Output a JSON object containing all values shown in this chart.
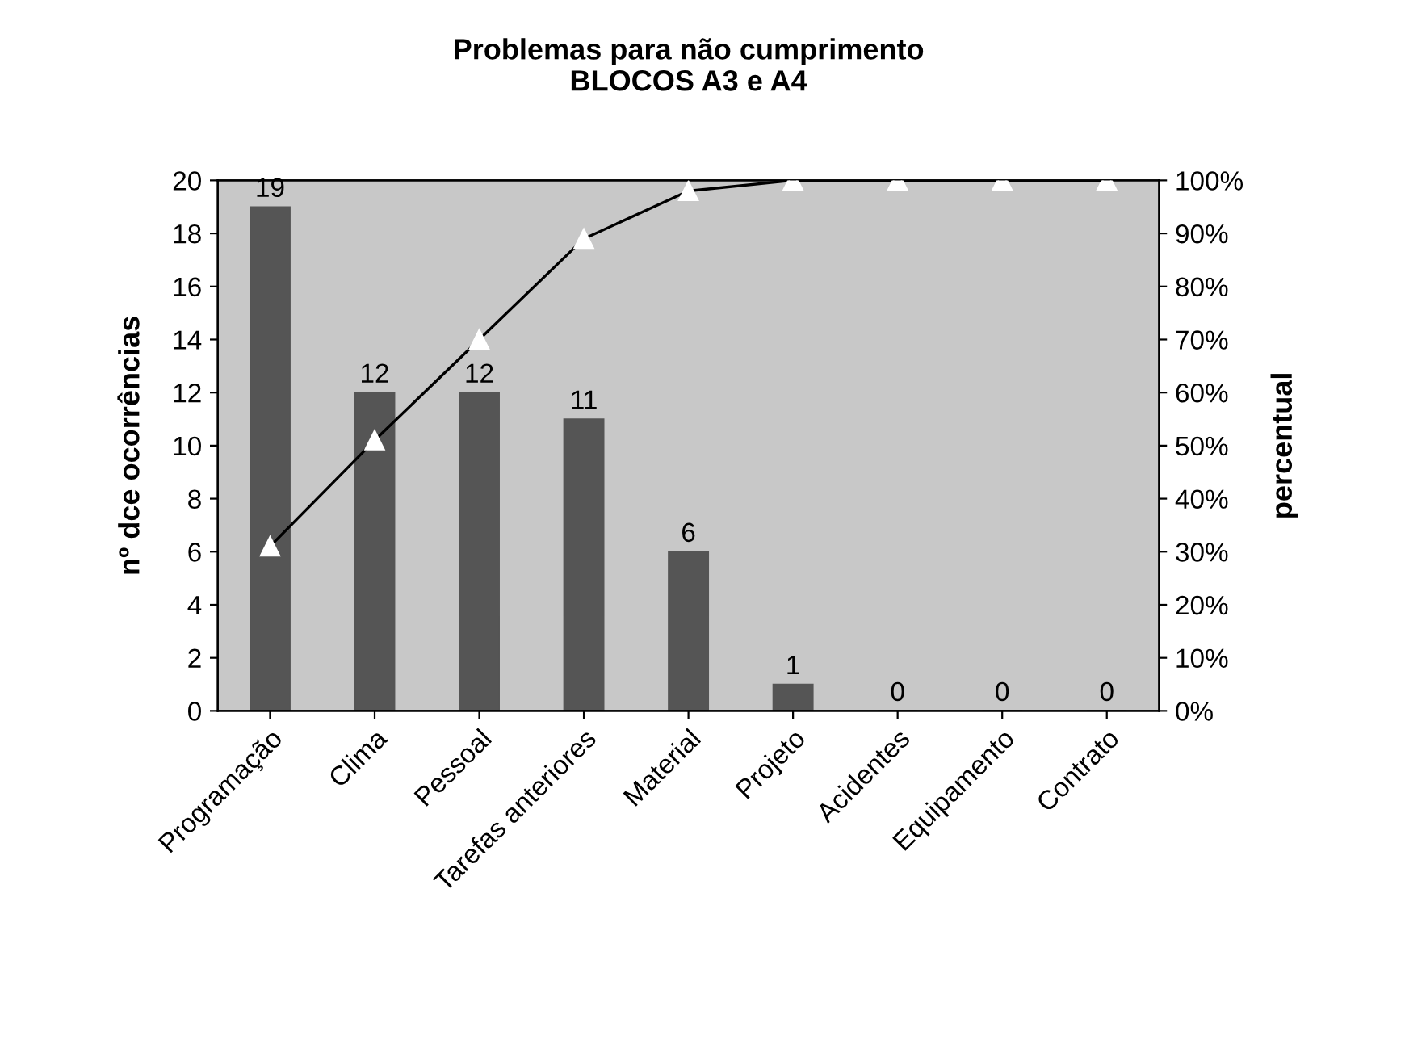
{
  "chart_data": {
    "type": "bar",
    "title": "Problemas para não cumprimento\nBLOCOS A3 e A4",
    "ylabel": "nº dce ocorrências",
    "y2label": "percentual",
    "categories": [
      "Programação",
      "Clima",
      "Pessoal",
      "Tarefas anteriores",
      "Material",
      "Projeto",
      "Acidentes",
      "Equipamento",
      "Contrato"
    ],
    "series": [
      {
        "color": "#555555",
        "values": [
          19,
          12,
          12,
          11,
          6,
          1,
          0,
          0,
          0
        ],
        "data_labels": true
      },
      {
        "type": "line",
        "axis": "y2",
        "color": "#000000",
        "marker": "triangle",
        "line_style": "solid",
        "values": [
          31,
          51,
          70,
          89,
          98,
          100,
          100,
          100,
          100
        ]
      }
    ],
    "ylim": [
      0,
      20
    ],
    "yticks": [
      0,
      2,
      4,
      6,
      8,
      10,
      12,
      14,
      16,
      18,
      20
    ],
    "y2lim": [
      0,
      100
    ],
    "y2ticks": [
      {
        "value": 0,
        "label": "0%"
      },
      {
        "value": 10,
        "label": "10%"
      },
      {
        "value": 20,
        "label": "20%"
      },
      {
        "value": 30,
        "label": "30%"
      },
      {
        "value": 40,
        "label": "40%"
      },
      {
        "value": 50,
        "label": "50%"
      },
      {
        "value": 60,
        "label": "60%"
      },
      {
        "value": 70,
        "label": "70%"
      },
      {
        "value": 80,
        "label": "80%"
      },
      {
        "value": 90,
        "label": "90%"
      },
      {
        "value": 100,
        "label": "100%"
      }
    ],
    "grid": false,
    "legend": false
  }
}
